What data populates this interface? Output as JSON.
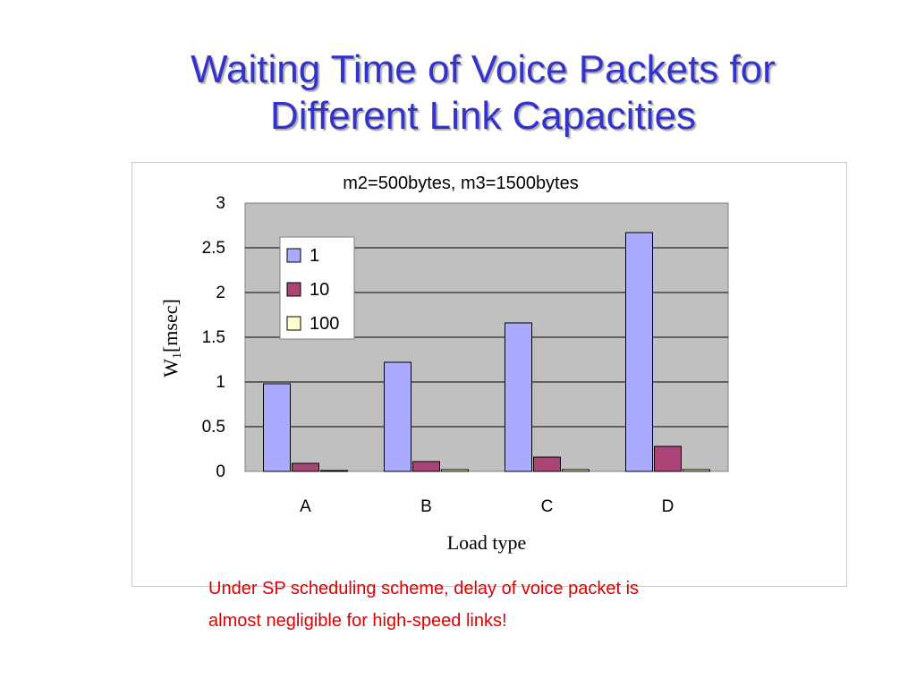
{
  "slide": {
    "title_line1": "Waiting Time of Voice Packets for",
    "title_line2": "Different Link Capacities",
    "caption_line1": "Under SP scheduling scheme, delay of voice packet is",
    "caption_line2": "almost negligible for high-speed links!"
  },
  "colors": {
    "title": "#3333cc",
    "caption": "#e00000",
    "plot_bg": "#c0c0c0"
  },
  "chart_data": {
    "type": "bar",
    "title": "m2=500bytes, m3=1500bytes",
    "xlabel": "Load type",
    "ylabel_main": "W",
    "ylabel_sub": "1",
    "ylabel_rest": "[msec]",
    "categories": [
      "A",
      "B",
      "C",
      "D"
    ],
    "ylim": [
      0,
      3
    ],
    "yticks": [
      0,
      0.5,
      1,
      1.5,
      2,
      2.5,
      3
    ],
    "ytick_labels": [
      "0",
      "0.5",
      "1",
      "1.5",
      "2",
      "2.5",
      "3"
    ],
    "grid": true,
    "legend_position": "top-left",
    "series": [
      {
        "name": "1",
        "color": "#aaaaff",
        "values": [
          0.98,
          1.22,
          1.66,
          2.67
        ]
      },
      {
        "name": "10",
        "color": "#aa4477",
        "values": [
          0.09,
          0.11,
          0.16,
          0.28
        ]
      },
      {
        "name": "100",
        "color": "#ffffcc",
        "values": [
          0.01,
          0.02,
          0.02,
          0.02
        ]
      }
    ]
  }
}
